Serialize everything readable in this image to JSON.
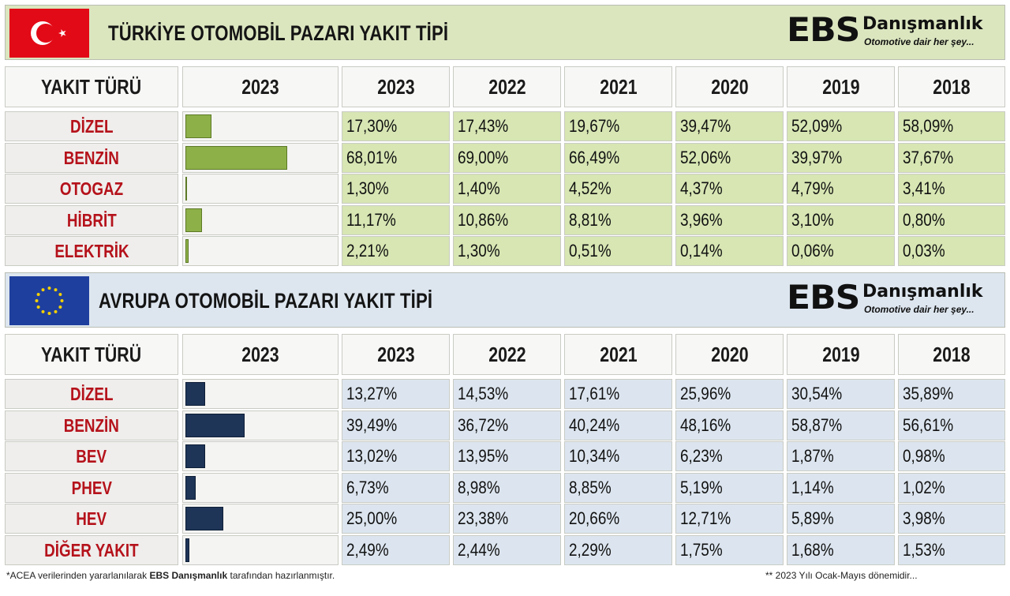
{
  "turkiye": {
    "title": "TÜRKİYE OTOMOBİL PAZARI YAKIT TİPİ",
    "header_label": "YAKIT TÜRÜ",
    "bar_year": "2023",
    "years": [
      "2023",
      "2022",
      "2021",
      "2020",
      "2019",
      "2018"
    ],
    "rows": [
      {
        "label": "DİZEL",
        "values": [
          "17,30%",
          "17,43%",
          "19,67%",
          "39,47%",
          "52,09%",
          "58,09%"
        ]
      },
      {
        "label": "BENZİN",
        "values": [
          "68,01%",
          "69,00%",
          "66,49%",
          "52,06%",
          "39,97%",
          "37,67%"
        ]
      },
      {
        "label": "OTOGAZ",
        "values": [
          "1,30%",
          "1,40%",
          "4,52%",
          "4,37%",
          "4,79%",
          "3,41%"
        ]
      },
      {
        "label": "HİBRİT",
        "values": [
          "11,17%",
          "10,86%",
          "8,81%",
          "3,96%",
          "3,10%",
          "0,80%"
        ]
      },
      {
        "label": "ELEKTRİK",
        "values": [
          "2,21%",
          "1,30%",
          "0,51%",
          "0,14%",
          "0,06%",
          "0,03%"
        ]
      }
    ]
  },
  "avrupa": {
    "title": "AVRUPA OTOMOBİL PAZARI YAKIT TİPİ",
    "header_label": "YAKIT TÜRÜ",
    "bar_year": "2023",
    "years": [
      "2023",
      "2022",
      "2021",
      "2020",
      "2019",
      "2018"
    ],
    "rows": [
      {
        "label": "DİZEL",
        "values": [
          "13,27%",
          "14,53%",
          "17,61%",
          "25,96%",
          "30,54%",
          "35,89%"
        ]
      },
      {
        "label": "BENZİN",
        "values": [
          "39,49%",
          "36,72%",
          "40,24%",
          "48,16%",
          "58,87%",
          "56,61%"
        ]
      },
      {
        "label": "BEV",
        "values": [
          "13,02%",
          "13,95%",
          "10,34%",
          "6,23%",
          "1,87%",
          "0,98%"
        ]
      },
      {
        "label": "PHEV",
        "values": [
          "6,73%",
          "8,98%",
          "8,85%",
          "5,19%",
          "1,14%",
          "1,02%"
        ]
      },
      {
        "label": "HEV",
        "values": [
          "25,00%",
          "23,38%",
          "20,66%",
          "12,71%",
          "5,89%",
          "3,98%"
        ]
      },
      {
        "label": "DİĞER YAKIT",
        "values": [
          "2,49%",
          "2,44%",
          "2,29%",
          "1,75%",
          "1,68%",
          "1,53%"
        ]
      }
    ]
  },
  "logo": {
    "brand": "EBS",
    "name": "Danışmanlık",
    "tagline": "Otomotive dair her şey..."
  },
  "footer": {
    "left_prefix": "*ACEA verilerinden yararlanılarak",
    "left_brand": "EBS Danışmanlık",
    "left_suffix": "tarafından hazırlanmıştır.",
    "right": "** 2023 Yılı Ocak-Mayıs dönemidir..."
  },
  "colors": {
    "tr_flag": "#e30a17",
    "eu_flag": "#1f3f9e",
    "label_red": "#b5121b",
    "green_bar": "#8db048",
    "navy_bar": "#1e3558"
  },
  "chart_data": [
    {
      "type": "bar",
      "title": "TÜRKİYE OTOMOBİL PAZARI YAKIT TİPİ",
      "categories": [
        "DİZEL",
        "BENZİN",
        "OTOGAZ",
        "HİBRİT",
        "ELEKTRİK"
      ],
      "series": [
        {
          "name": "2023",
          "values": [
            17.3,
            68.01,
            1.3,
            11.17,
            2.21
          ]
        },
        {
          "name": "2022",
          "values": [
            17.43,
            69.0,
            1.4,
            10.86,
            1.3
          ]
        },
        {
          "name": "2021",
          "values": [
            19.67,
            66.49,
            4.52,
            8.81,
            0.51
          ]
        },
        {
          "name": "2020",
          "values": [
            39.47,
            52.06,
            4.37,
            3.96,
            0.14
          ]
        },
        {
          "name": "2019",
          "values": [
            52.09,
            39.97,
            4.79,
            3.1,
            0.06
          ]
        },
        {
          "name": "2018",
          "values": [
            58.09,
            37.67,
            3.41,
            0.8,
            0.03
          ]
        }
      ],
      "unit": "%"
    },
    {
      "type": "bar",
      "title": "AVRUPA OTOMOBİL PAZARI YAKIT TİPİ",
      "categories": [
        "DİZEL",
        "BENZİN",
        "BEV",
        "PHEV",
        "HEV",
        "DİĞER YAKIT"
      ],
      "series": [
        {
          "name": "2023",
          "values": [
            13.27,
            39.49,
            13.02,
            6.73,
            25.0,
            2.49
          ]
        },
        {
          "name": "2022",
          "values": [
            14.53,
            36.72,
            13.95,
            8.98,
            23.38,
            2.44
          ]
        },
        {
          "name": "2021",
          "values": [
            17.61,
            40.24,
            10.34,
            8.85,
            20.66,
            2.29
          ]
        },
        {
          "name": "2020",
          "values": [
            25.96,
            48.16,
            6.23,
            5.19,
            12.71,
            1.75
          ]
        },
        {
          "name": "2019",
          "values": [
            30.54,
            58.87,
            1.87,
            1.14,
            5.89,
            1.68
          ]
        },
        {
          "name": "2018",
          "values": [
            35.89,
            56.61,
            0.98,
            1.02,
            3.98,
            1.53
          ]
        }
      ],
      "unit": "%"
    }
  ]
}
